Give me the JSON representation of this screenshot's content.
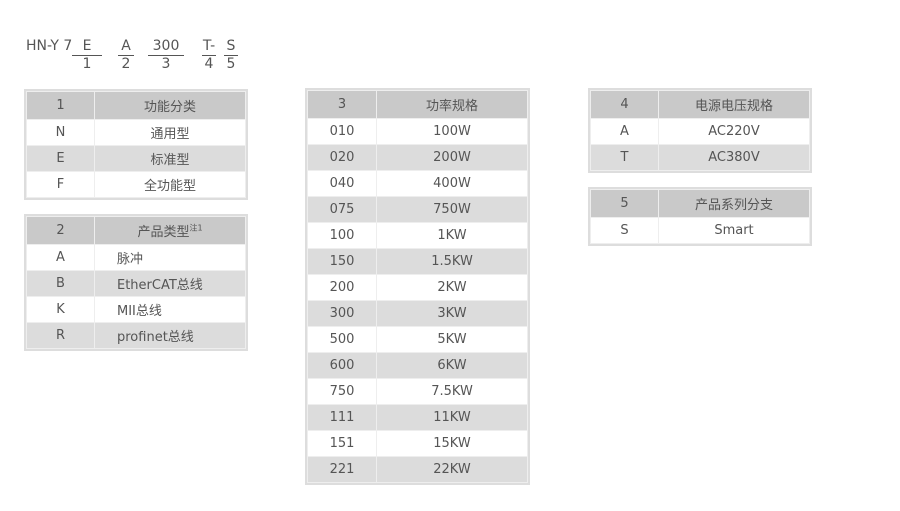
{
  "code": {
    "prefix": "HN-Y 7",
    "parts": [
      {
        "top": "E",
        "bottom": "1"
      },
      {
        "top": "A",
        "bottom": "2"
      },
      {
        "top": "300",
        "bottom": "3"
      },
      {
        "top": "T-",
        "bottom": "4"
      },
      {
        "top": "S",
        "bottom": "5"
      }
    ]
  },
  "t1": {
    "num": "1",
    "title": "功能分类",
    "rows": [
      [
        "N",
        "通用型"
      ],
      [
        "E",
        "标准型"
      ],
      [
        "F",
        "全功能型"
      ]
    ]
  },
  "t2": {
    "num": "2",
    "title": "产品类型",
    "note": "注1",
    "rows": [
      [
        "A",
        "脉冲"
      ],
      [
        "B",
        "EtherCAT总线"
      ],
      [
        "K",
        "MII总线"
      ],
      [
        "R",
        "profinet总线"
      ]
    ]
  },
  "t3": {
    "num": "3",
    "title": "功率规格",
    "rows": [
      [
        "010",
        "100W"
      ],
      [
        "020",
        "200W"
      ],
      [
        "040",
        "400W"
      ],
      [
        "075",
        "750W"
      ],
      [
        "100",
        "1KW"
      ],
      [
        "150",
        "1.5KW"
      ],
      [
        "200",
        "2KW"
      ],
      [
        "300",
        "3KW"
      ],
      [
        "500",
        "5KW"
      ],
      [
        "600",
        "6KW"
      ],
      [
        "750",
        "7.5KW"
      ],
      [
        "111",
        "11KW"
      ],
      [
        "151",
        "15KW"
      ],
      [
        "221",
        "22KW"
      ]
    ]
  },
  "t4": {
    "num": "4",
    "title": "电源电压规格",
    "rows": [
      [
        "A",
        "AC220V"
      ],
      [
        "T",
        "AC380V"
      ]
    ]
  },
  "t5": {
    "num": "5",
    "title": "产品系列分支",
    "rows": [
      [
        "S",
        "Smart"
      ]
    ]
  }
}
